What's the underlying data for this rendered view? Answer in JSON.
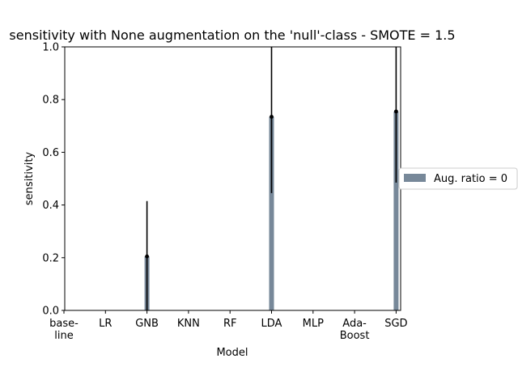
{
  "chart_data": {
    "type": "bar",
    "title": "sensitivity with None augmentation on the 'null'-class - SMOTE = 1.5",
    "xlabel": "Model",
    "ylabel": "sensitivity",
    "ylim": [
      0,
      1
    ],
    "yticks": [
      "0.0",
      "0.2",
      "0.4",
      "0.6",
      "0.8",
      "1.0"
    ],
    "categories": [
      [
        "base-",
        "line"
      ],
      [
        "LR"
      ],
      [
        "GNB"
      ],
      [
        "KNN"
      ],
      [
        "RF"
      ],
      [
        "LDA"
      ],
      [
        "MLP"
      ],
      [
        "Ada-",
        "Boost"
      ],
      [
        "SGD"
      ]
    ],
    "series": [
      {
        "name": "Aug. ratio = 0",
        "color": "#778899",
        "values": [
          0,
          0,
          0.205,
          0,
          0,
          0.735,
          0,
          0,
          0.755
        ],
        "errors": [
          0,
          0,
          0.21,
          0,
          0,
          0.29,
          0,
          0,
          0.27
        ]
      }
    ],
    "legend_position": "right",
    "grid": false
  }
}
